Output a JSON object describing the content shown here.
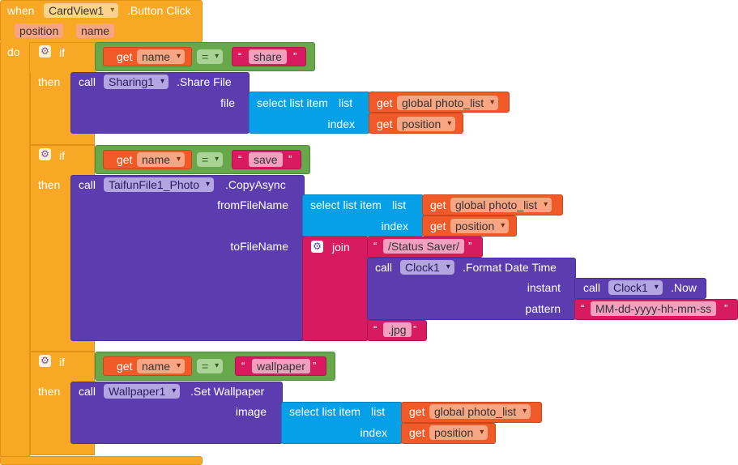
{
  "event": {
    "when": "when",
    "component": "CardView1",
    "event_name": ".Button Click",
    "params": [
      "position",
      "name"
    ],
    "do": "do"
  },
  "colors": {
    "event": "#f9a825",
    "logic": "#66a84a",
    "variable": "#f05a28",
    "text": "#d81b60",
    "component": "#5c3db0",
    "list": "#06a0e8"
  },
  "icons": {
    "mutator": "gear-icon",
    "dropdown": "chevron-down-icon"
  },
  "blocks": [
    {
      "if": "if",
      "then": "then",
      "get": "get",
      "var": "name",
      "op": "=",
      "string": "share",
      "call": "call",
      "component": "Sharing1",
      "method": ".Share File",
      "arg1_label": "file",
      "select_label": "select list item",
      "list_label": "list",
      "list_var": "global photo_list",
      "index_label": "index",
      "index_var": "position"
    },
    {
      "if": "if",
      "then": "then",
      "get": "get",
      "var": "name",
      "op": "=",
      "string": "save",
      "call": "call",
      "component": "TaifunFile1_Photo",
      "method": ".CopyAsync",
      "from_label": "fromFileName",
      "select_label": "select list item",
      "list_label": "list",
      "list_var": "global photo_list",
      "index_label": "index",
      "index_var": "position",
      "to_label": "toFileName",
      "join": "join",
      "join_str1": "/Status Saver/",
      "clock_call": "call",
      "clock_comp": "Clock1",
      "clock_method": ".Format Date Time",
      "instant_label": "instant",
      "now_call": "call",
      "now_comp": "Clock1",
      "now_method": ".Now",
      "pattern_label": "pattern",
      "pattern_str": "MM-dd-yyyy-hh-mm-ss",
      "join_str2": ".jpg"
    },
    {
      "if": "if",
      "then": "then",
      "get": "get",
      "var": "name",
      "op": "=",
      "string": "wallpaper",
      "call": "call",
      "component": "Wallpaper1",
      "method": ".Set Wallpaper",
      "arg1_label": "image",
      "select_label": "select list item",
      "list_label": "list",
      "list_var": "global photo_list",
      "index_label": "index",
      "index_var": "position"
    }
  ],
  "quote_open": "“",
  "quote_close": "”"
}
